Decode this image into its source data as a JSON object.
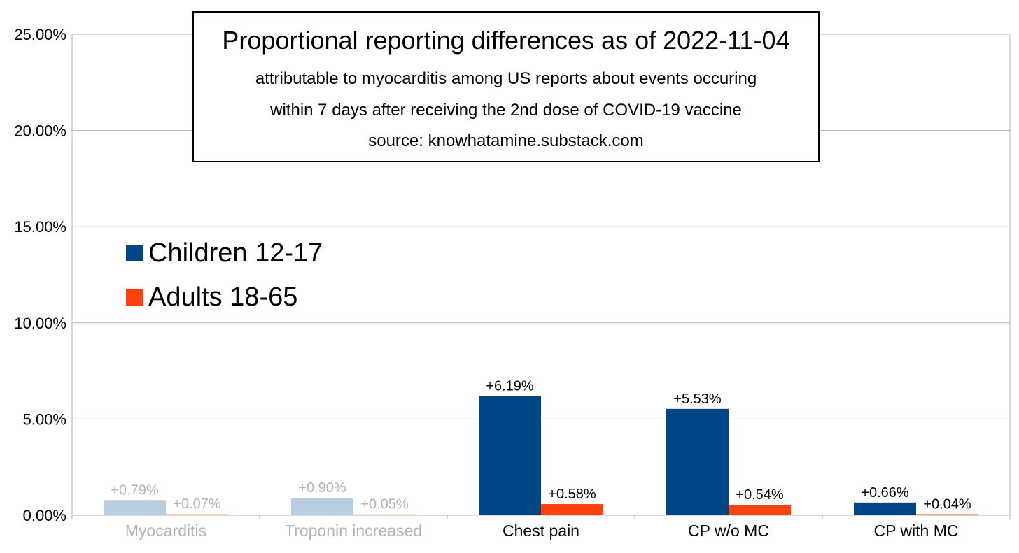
{
  "chart_data": {
    "type": "bar",
    "title": "Proportional reporting differences as of 2022-11-04",
    "subtitle_lines": [
      "attributable to myocarditis among US reports about events occuring",
      "within 7 days after receiving the 2nd dose of COVID-19 vaccine",
      "source: knowhatamine.substack.com"
    ],
    "categories": [
      "Myocarditis",
      "Troponin increased",
      "Chest pain",
      "CP w/o MC",
      "CP with MC"
    ],
    "category_faded": [
      true,
      true,
      false,
      false,
      false
    ],
    "series": [
      {
        "name": "Children 12-17",
        "color": "#004586",
        "faded_color": "#b9cde0",
        "values": [
          0.79,
          0.9,
          6.19,
          5.53,
          0.66
        ],
        "labels": [
          "+0.79%",
          "+0.90%",
          "+6.19%",
          "+5.53%",
          "+0.66%"
        ]
      },
      {
        "name": "Adults 18-65",
        "color": "#ff420e",
        "faded_color": "#ffc9b8",
        "values": [
          0.07,
          0.05,
          0.58,
          0.54,
          0.04
        ],
        "labels": [
          "+0.07%",
          "+0.05%",
          "+0.58%",
          "+0.54%",
          "+0.04%"
        ]
      }
    ],
    "ylim": [
      0,
      25
    ],
    "yticks": [
      0,
      5,
      10,
      15,
      20,
      25
    ],
    "ytick_labels": [
      "0.00%",
      "5.00%",
      "10.00%",
      "15.00%",
      "20.00%",
      "25.00%"
    ],
    "xlabel": "",
    "ylabel": "",
    "grid": true,
    "legend_position": "left",
    "colors": {
      "grid": "#b3b3b3",
      "faded_text": "#b3b3b3",
      "text": "#000000"
    }
  }
}
